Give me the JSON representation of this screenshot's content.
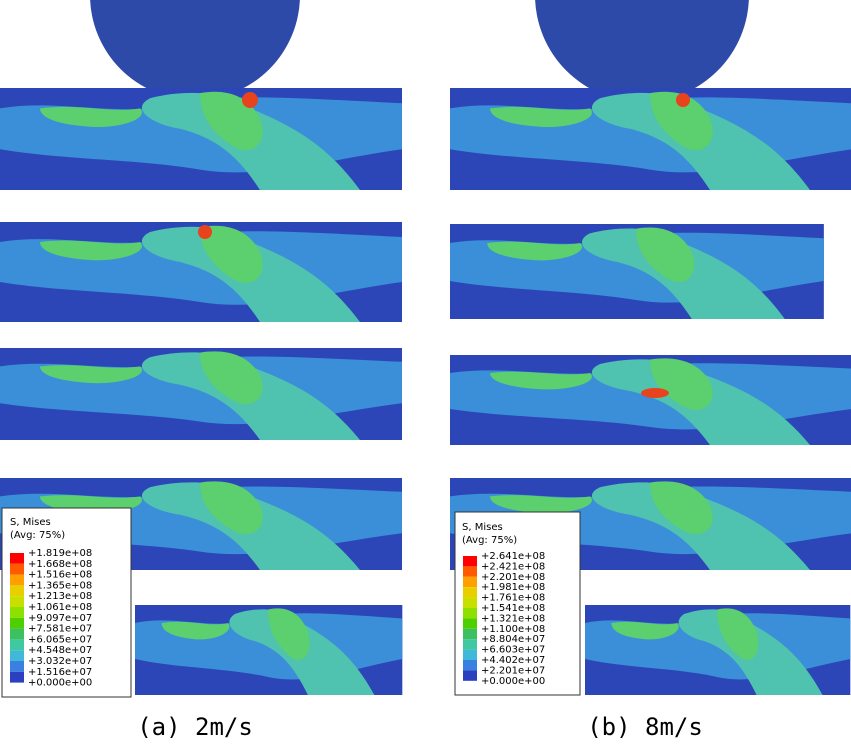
{
  "left": {
    "legend": {
      "title": "S, Mises",
      "subtitle": "(Avg: 75%)",
      "values": [
        "+1.819e+08",
        "+1.668e+08",
        "+1.516e+08",
        "+1.365e+08",
        "+1.213e+08",
        "+1.061e+08",
        "+9.097e+07",
        "+7.581e+07",
        "+6.065e+07",
        "+4.548e+07",
        "+3.032e+07",
        "+1.516e+07",
        "+0.000e+00"
      ]
    },
    "caption": "(a) 2m/s"
  },
  "right": {
    "legend": {
      "title": "S, Mises",
      "subtitle": "(Avg: 75%)",
      "values": [
        "+2.641e+08",
        "+2.421e+08",
        "+2.201e+08",
        "+1.981e+08",
        "+1.761e+08",
        "+1.541e+08",
        "+1.321e+08",
        "+1.100e+08",
        "+8.804e+07",
        "+6.603e+07",
        "+4.402e+07",
        "+2.201e+07",
        "+0.000e+00"
      ]
    },
    "caption": "(b) 8m/s"
  }
}
